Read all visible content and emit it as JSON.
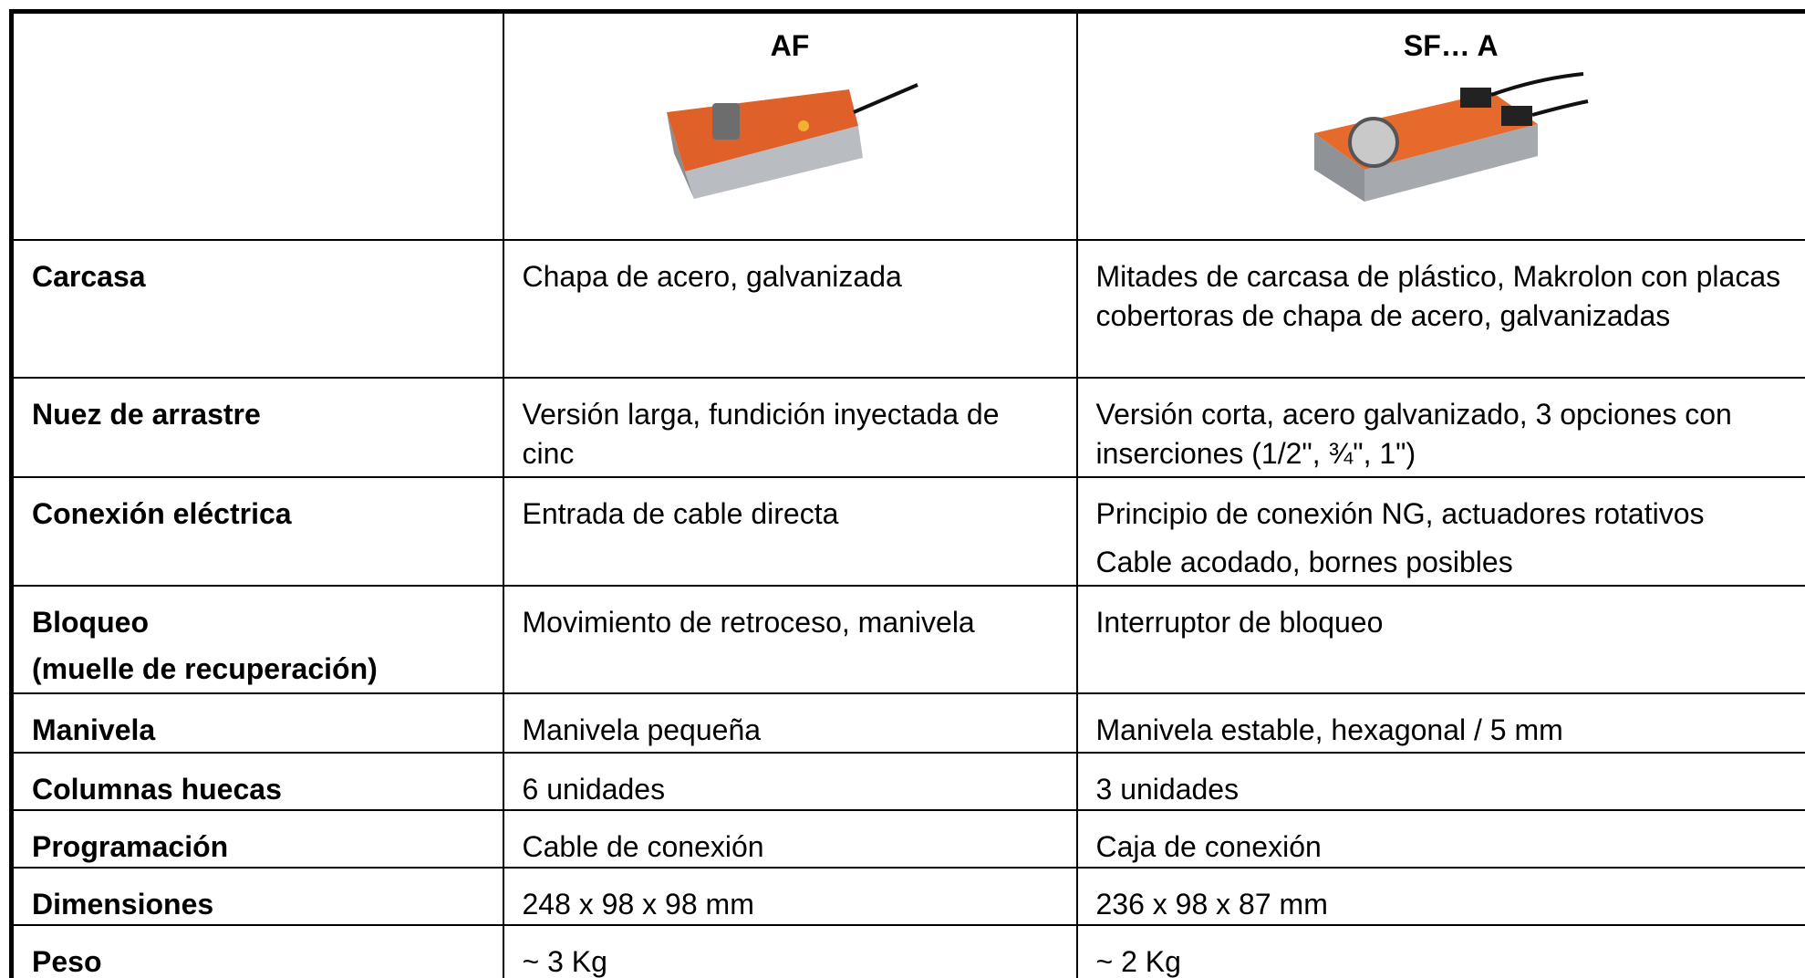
{
  "header": {
    "af": "AF",
    "sf": "SF… A"
  },
  "rows": [
    {
      "label": [
        "Carcasa"
      ],
      "af": [
        "Chapa de acero, galvanizada"
      ],
      "sf": [
        "Mitades de carcasa de plástico, Makrolon con placas cobertoras de chapa de acero, galvanizadas"
      ]
    },
    {
      "label": [
        "Nuez de arrastre"
      ],
      "af": [
        "Versión larga, fundición inyectada de cinc"
      ],
      "sf": [
        "Versión corta, acero galvanizado, 3 opciones con inserciones (1/2\", ¾\", 1\")"
      ]
    },
    {
      "label": [
        "Conexión eléctrica"
      ],
      "af": [
        "Entrada de cable directa"
      ],
      "sf": [
        "Principio de conexión NG, actuadores rotativos",
        "Cable acodado, bornes posibles"
      ]
    },
    {
      "label": [
        "Bloqueo",
        "(muelle de recuperación)"
      ],
      "af": [
        "Movimiento de retroceso, manivela"
      ],
      "sf": [
        "Interruptor de bloqueo"
      ]
    },
    {
      "label": [
        "Manivela"
      ],
      "af": [
        "Manivela pequeña"
      ],
      "sf": [
        "Manivela estable, hexagonal / 5 mm"
      ]
    },
    {
      "label": [
        "Columnas huecas"
      ],
      "af": [
        "6 unidades"
      ],
      "sf": [
        "3 unidades"
      ]
    },
    {
      "label": [
        "Programación"
      ],
      "af": [
        "Cable de conexión"
      ],
      "sf": [
        "Caja de conexión"
      ]
    },
    {
      "label": [
        "Dimensiones"
      ],
      "af": [
        "248 x 98 x 98 mm"
      ],
      "sf": [
        "236 x 98 x 87 mm"
      ]
    },
    {
      "label": [
        "Peso"
      ],
      "af": [
        "~ 3 Kg"
      ],
      "sf": [
        "~ 2 Kg"
      ]
    }
  ]
}
